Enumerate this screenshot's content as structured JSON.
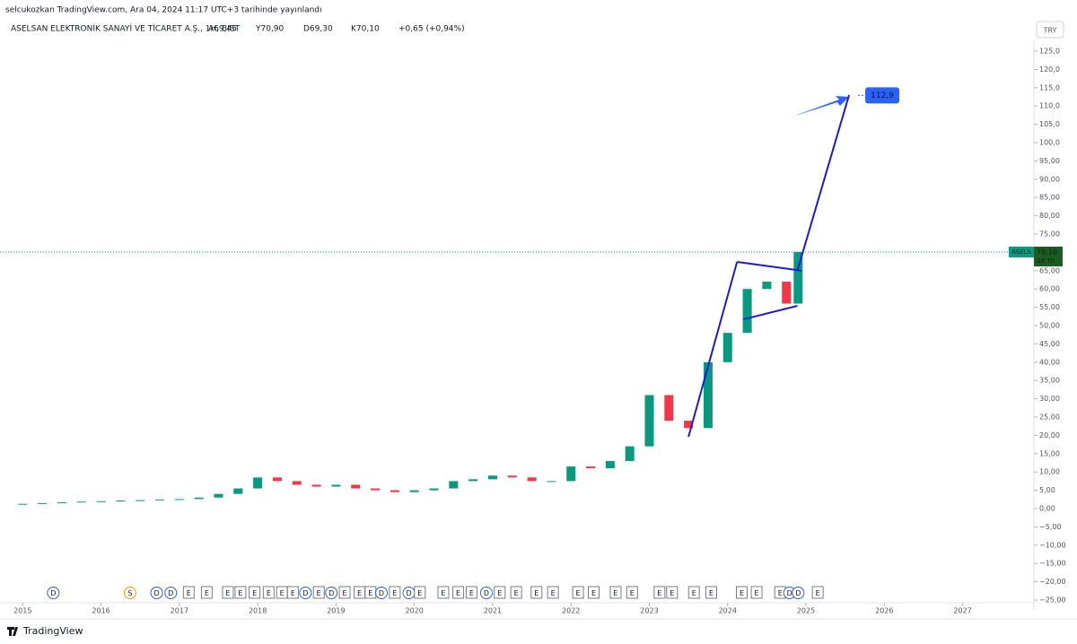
{
  "chart_data": {
    "type": "candlestick",
    "subtitle": "selcukozkan TradingView.com, Ara 04, 2024 11:17 UTC+3 tarihinde yayınlandı",
    "title": "ASELSAN ELEKTRONİK SANAYİ VE TİCARET A.Ş., 1H, BIST",
    "ohlc": [
      "A69,45",
      "Y70,90",
      "D69,30",
      "K70,10"
    ],
    "change": "+0,65 (+0,94%)",
    "currency": "TRY",
    "footer": "TradingView",
    "x": [
      2015,
      2015.25,
      2015.5,
      2015.75,
      2016,
      2016.25,
      2016.5,
      2016.75,
      2017,
      2017.25,
      2017.5,
      2017.75,
      2018,
      2018.25,
      2018.5,
      2018.75,
      2019,
      2019.25,
      2019.5,
      2019.75,
      2020,
      2020.25,
      2020.5,
      2020.75,
      2021,
      2021.25,
      2021.5,
      2021.75,
      2022,
      2022.25,
      2022.5,
      2022.75,
      2023,
      2023.25,
      2023.5,
      2023.75,
      2024,
      2024.25,
      2024.5,
      2024.75,
      2024.9
    ],
    "values": [
      1.3,
      1.5,
      1.7,
      1.9,
      2.0,
      2.2,
      2.3,
      2.5,
      2.6,
      3.0,
      4.0,
      5.5,
      8.5,
      7.5,
      6.5,
      6.0,
      6.5,
      5.5,
      5.0,
      4.5,
      5.0,
      5.5,
      7.5,
      8.0,
      9.0,
      8.5,
      7.5,
      7.5,
      11.5,
      11.0,
      13.0,
      17.0,
      31.0,
      24.0,
      22.0,
      40.0,
      48.0,
      60.0,
      62.0,
      56.0,
      70.1
    ],
    "up_color": "#089981",
    "down_color": "#f23645",
    "xlim": [
      2014.71,
      2027.91
    ],
    "xticks": [
      2015,
      2016,
      2017,
      2018,
      2019,
      2020,
      2021,
      2022,
      2023,
      2024,
      2025,
      2026,
      2027
    ],
    "ylim": [
      -25,
      125
    ],
    "yticks": [
      {
        "value": 125,
        "label": "125,0"
      },
      {
        "value": 120,
        "label": "120,0"
      },
      {
        "value": 115,
        "label": "115,0"
      },
      {
        "value": 110,
        "label": "110,0"
      },
      {
        "value": 105,
        "label": "105,0"
      },
      {
        "value": 100,
        "label": "100,0"
      },
      {
        "value": 95,
        "label": "95,00"
      },
      {
        "value": 90,
        "label": "90,00"
      },
      {
        "value": 85,
        "label": "85,00"
      },
      {
        "value": 80,
        "label": "80,00"
      },
      {
        "value": 75,
        "label": "75,00"
      },
      {
        "value": 70,
        "label": "70,00"
      },
      {
        "value": 65,
        "label": "65,00"
      },
      {
        "value": 60,
        "label": "60,00"
      },
      {
        "value": 55,
        "label": "55,00"
      },
      {
        "value": 50,
        "label": "50,00"
      },
      {
        "value": 45,
        "label": "45,00"
      },
      {
        "value": 40,
        "label": "40,00"
      },
      {
        "value": 35,
        "label": "35,00"
      },
      {
        "value": 30,
        "label": "30,00"
      },
      {
        "value": 25,
        "label": "25,00"
      },
      {
        "value": 20,
        "label": "20,00"
      },
      {
        "value": 15,
        "label": "15,00"
      },
      {
        "value": 10,
        "label": "10,00"
      },
      {
        "value": 5,
        "label": "5,00"
      },
      {
        "value": 0,
        "label": "0,00"
      },
      {
        "value": -5,
        "label": "−5,00"
      },
      {
        "value": -10,
        "label": "−10,00"
      },
      {
        "value": -15,
        "label": "−15,00"
      },
      {
        "value": -20,
        "label": "−20,00"
      },
      {
        "value": -25,
        "label": "−25,00"
      }
    ],
    "price_tag": {
      "symbol": "ASELS",
      "value": 70.1,
      "label": "70,10",
      "countdown": "2d 7h"
    },
    "target": {
      "x": 2025.55,
      "value": 112.9,
      "label": "112,9"
    },
    "lines": [
      {
        "x": [
          2023.5,
          2024.12
        ],
        "values": [
          19.6,
          67.4
        ]
      },
      {
        "x": [
          2024.12,
          2024.94
        ],
        "values": [
          67.4,
          65.0
        ]
      },
      {
        "x": [
          2024.2,
          2024.89
        ],
        "values": [
          51.7,
          55.4
        ]
      },
      {
        "x": [
          2024.89,
          2025.55
        ],
        "values": [
          65.0,
          113
        ]
      }
    ],
    "line_color": "#1b1bd6",
    "events": [
      {
        "x": 2015.39,
        "label": "D"
      },
      {
        "x": 2016.37,
        "label": "S"
      },
      {
        "x": 2016.71,
        "label": "D"
      },
      {
        "x": 2016.89,
        "label": "D"
      },
      {
        "x": 2017.12,
        "label": "E"
      },
      {
        "x": 2017.35,
        "label": "E"
      },
      {
        "x": 2017.62,
        "label": "E"
      },
      {
        "x": 2017.78,
        "label": "E"
      },
      {
        "x": 2017.96,
        "label": "E"
      },
      {
        "x": 2018.14,
        "label": "E"
      },
      {
        "x": 2018.31,
        "label": "E"
      },
      {
        "x": 2018.45,
        "label": "E"
      },
      {
        "x": 2018.61,
        "label": "D"
      },
      {
        "x": 2018.78,
        "label": "E"
      },
      {
        "x": 2018.94,
        "label": "D"
      },
      {
        "x": 2019.11,
        "label": "E"
      },
      {
        "x": 2019.3,
        "label": "E"
      },
      {
        "x": 2019.44,
        "label": "E"
      },
      {
        "x": 2019.58,
        "label": "D"
      },
      {
        "x": 2019.75,
        "label": "E"
      },
      {
        "x": 2019.93,
        "label": "D"
      },
      {
        "x": 2020.07,
        "label": "E"
      },
      {
        "x": 2020.37,
        "label": "E"
      },
      {
        "x": 2020.56,
        "label": "E"
      },
      {
        "x": 2020.73,
        "label": "E"
      },
      {
        "x": 2020.92,
        "label": "D"
      },
      {
        "x": 2021.09,
        "label": "E"
      },
      {
        "x": 2021.3,
        "label": "E"
      },
      {
        "x": 2021.56,
        "label": "E"
      },
      {
        "x": 2021.77,
        "label": "E"
      },
      {
        "x": 2022.09,
        "label": "E"
      },
      {
        "x": 2022.29,
        "label": "E"
      },
      {
        "x": 2022.57,
        "label": "E"
      },
      {
        "x": 2022.78,
        "label": "E"
      },
      {
        "x": 2023.13,
        "label": "E"
      },
      {
        "x": 2023.29,
        "label": "E"
      },
      {
        "x": 2023.57,
        "label": "E"
      },
      {
        "x": 2023.79,
        "label": "E"
      },
      {
        "x": 2024.18,
        "label": "E"
      },
      {
        "x": 2024.37,
        "label": "E"
      },
      {
        "x": 2024.67,
        "label": "E"
      },
      {
        "x": 2024.79,
        "label": "D"
      },
      {
        "x": 2024.9,
        "label": "D"
      },
      {
        "x": 2025.15,
        "label": "E"
      }
    ]
  }
}
